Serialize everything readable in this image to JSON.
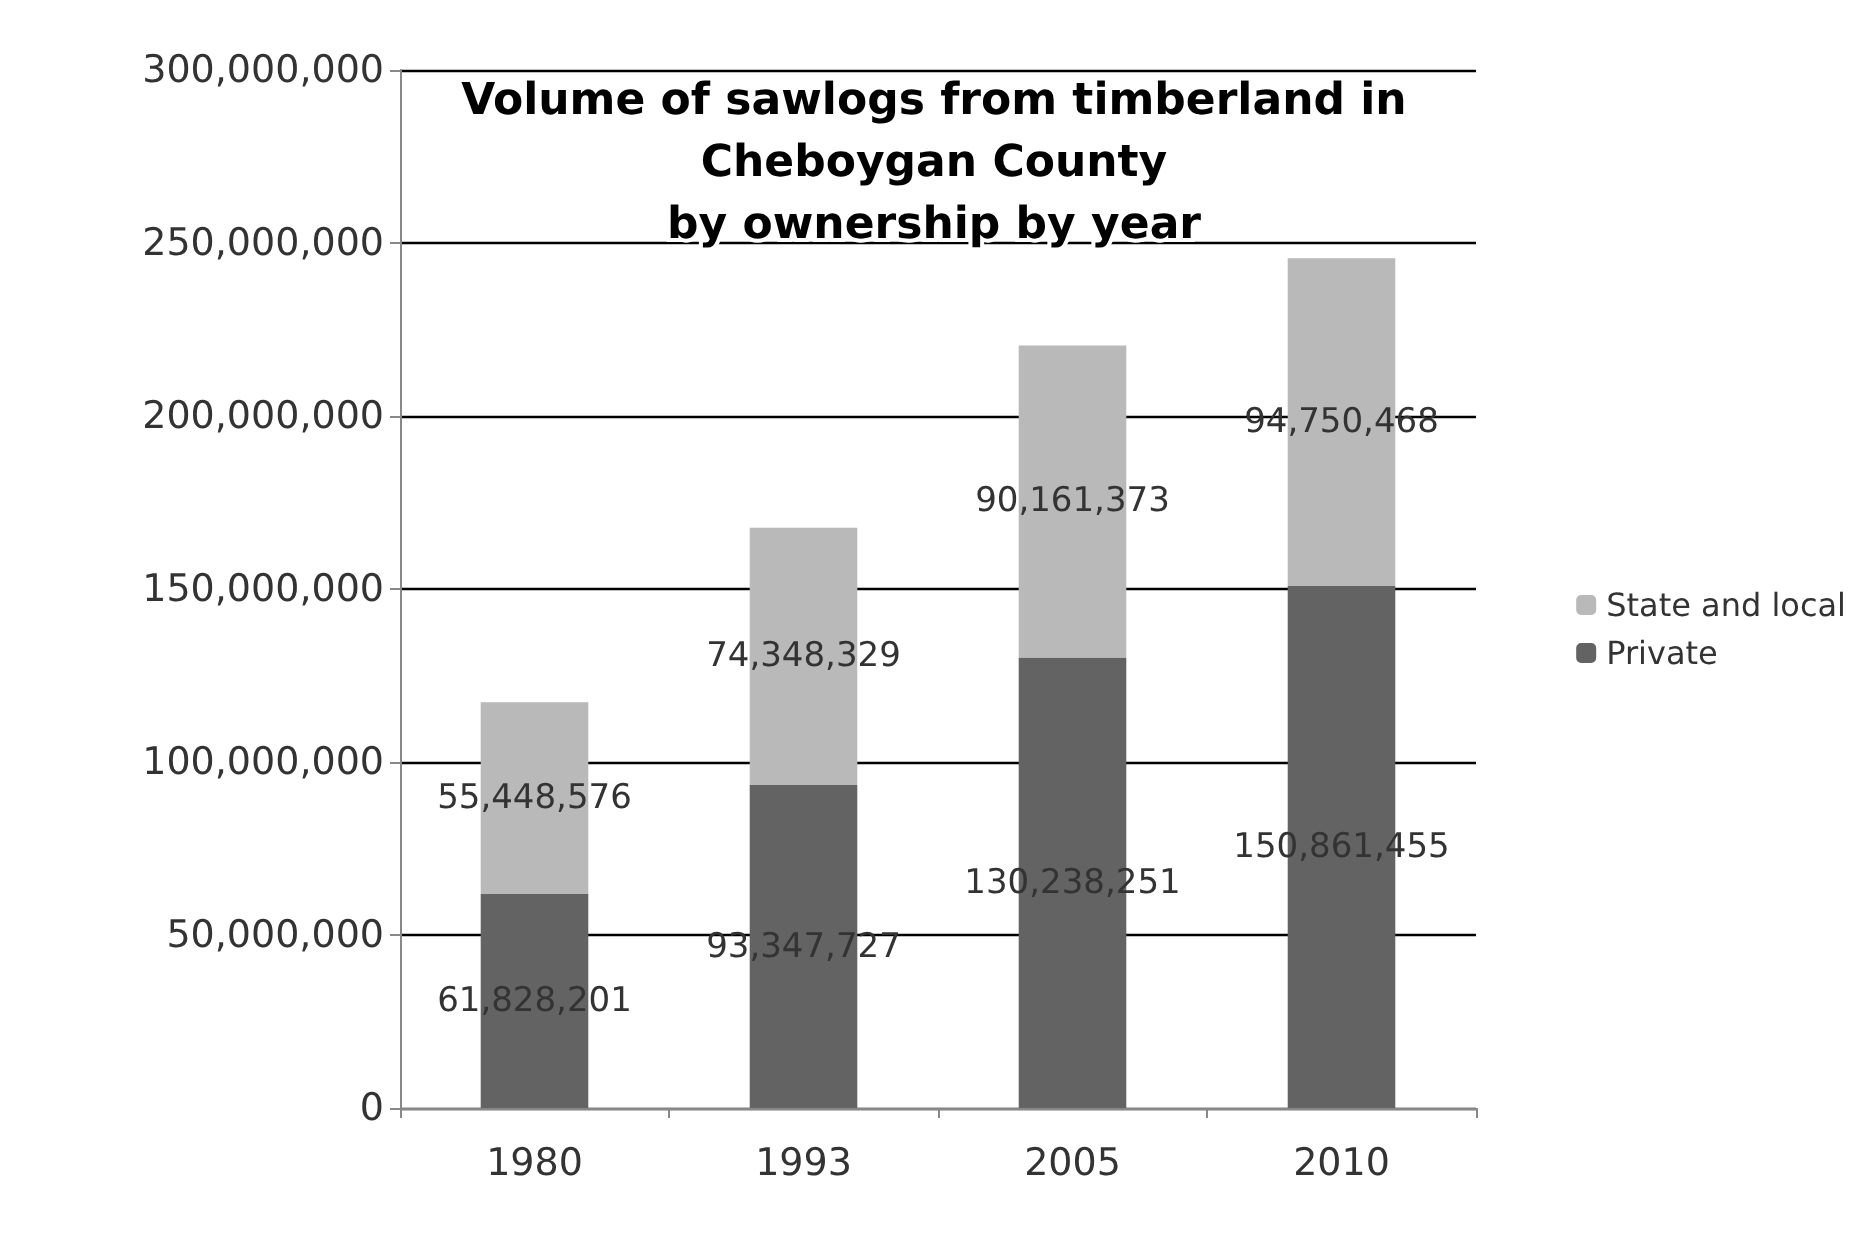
{
  "chart_data": {
    "type": "bar",
    "title": "Volume of sawlogs from timberland in\nCheboygan County\nby ownership by year",
    "categories": [
      "1980",
      "1993",
      "2005",
      "2010"
    ],
    "stacked": true,
    "series": [
      {
        "name": "Private",
        "color": "#636363",
        "values": [
          61828201,
          93347727,
          130238251,
          150861455
        ],
        "value_labels": [
          "61,828,201",
          "93,347,727",
          "130,238,251",
          "150,861,455"
        ]
      },
      {
        "name": "State and local",
        "color": "#b9b9b9",
        "values": [
          55448576,
          74348329,
          90161373,
          94750468
        ],
        "value_labels": [
          "55,448,576",
          "74,348,329",
          "90,161,373",
          "94,750,468"
        ]
      }
    ],
    "ylim": [
      0,
      300000000
    ],
    "yticks": [
      0,
      {
        "value": 50000000,
        "label": "50,000,000"
      },
      {
        "value": 100000000,
        "label": "100,000,000"
      },
      {
        "value": 150000000,
        "label": "150,000,000"
      },
      {
        "value": 200000000,
        "label": "200,000,000"
      },
      {
        "value": 250000000,
        "label": "250,000,000"
      },
      {
        "value": 300000000,
        "label": "300,000,000"
      }
    ],
    "grid": "y",
    "legend": "right"
  }
}
